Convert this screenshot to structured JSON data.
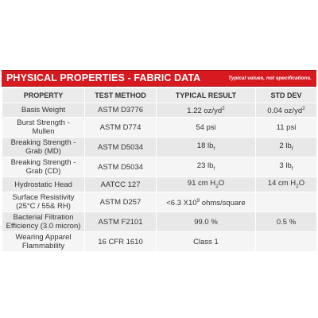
{
  "header": {
    "title": "PHYSICAL PROPERTIES - FABRIC DATA",
    "note": "Typical values, not specifications."
  },
  "table": {
    "columns": [
      "PROPERTY",
      "TEST METHOD",
      "TYPICAL RESULT",
      "STD DEV"
    ],
    "rows": [
      [
        "Basis Weight",
        "ASTM D3776",
        {
          "text": "1.22 oz/yd",
          "sup": "2"
        },
        {
          "text": "0.04 oz/yd",
          "sup": "2"
        }
      ],
      [
        "Burst Strength - Mullen",
        "ASTM D774",
        "54 psi",
        "11 psi"
      ],
      [
        "Breaking Strength - Grab (MD)",
        "ASTM D5034",
        {
          "text": "18 lb",
          "sub": "f"
        },
        {
          "text": "2 lb",
          "sub": "f"
        }
      ],
      [
        "Breaking Strength - Grab (CD)",
        "ASTM D5034",
        {
          "text": "23 lb",
          "sub": "f"
        },
        {
          "text": "3 lb",
          "sub": "f"
        }
      ],
      [
        "Hydrostatic Head",
        "AATCC 127",
        {
          "text": "91 cm H",
          "sub": "2",
          "after": "O"
        },
        {
          "text": "14 cm H",
          "sub": "2",
          "after": "O"
        }
      ],
      [
        "Surface Resistivity (25°C / 55& RH)",
        "ASTM D257",
        {
          "text": "<6.3 X10",
          "sup": "9",
          "after": " ohms/square"
        },
        null
      ],
      [
        "Bacterial Filtration Efficiency (3.0 micron)",
        "ASTM F2101",
        "99.0 %",
        "0.5 %"
      ],
      [
        "Wearing Apparel Flammability",
        "16 CFR 1610",
        "Class 1",
        null
      ]
    ]
  }
}
